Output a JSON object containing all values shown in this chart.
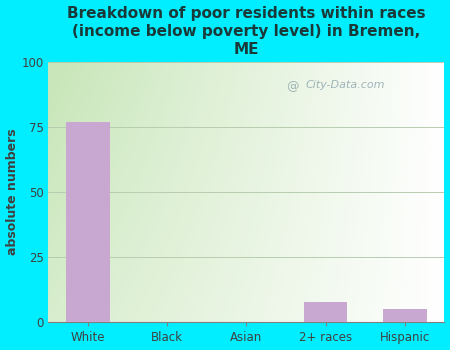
{
  "title": "Breakdown of poor residents within races\n(income below poverty level) in Bremen,\nME",
  "categories": [
    "White",
    "Black",
    "Asian",
    "2+ races",
    "Hispanic"
  ],
  "values": [
    77,
    0,
    0,
    8,
    5
  ],
  "bar_color": "#c8a8d0",
  "ylabel": "absolute numbers",
  "ylim": [
    0,
    100
  ],
  "yticks": [
    0,
    25,
    50,
    75,
    100
  ],
  "background_color": "#00eeff",
  "plot_bg_topleft": "#c8dfc0",
  "plot_bg_topright": "#f0faf0",
  "plot_bg_bottomright": "#ffffff",
  "title_color": "#1a3a3a",
  "title_fontsize": 11,
  "axis_label_color": "#404040",
  "tick_label_color": "#404040",
  "watermark": "City-Data.com",
  "grid_color": "#b8ccb0",
  "grid_linewidth": 0.7
}
